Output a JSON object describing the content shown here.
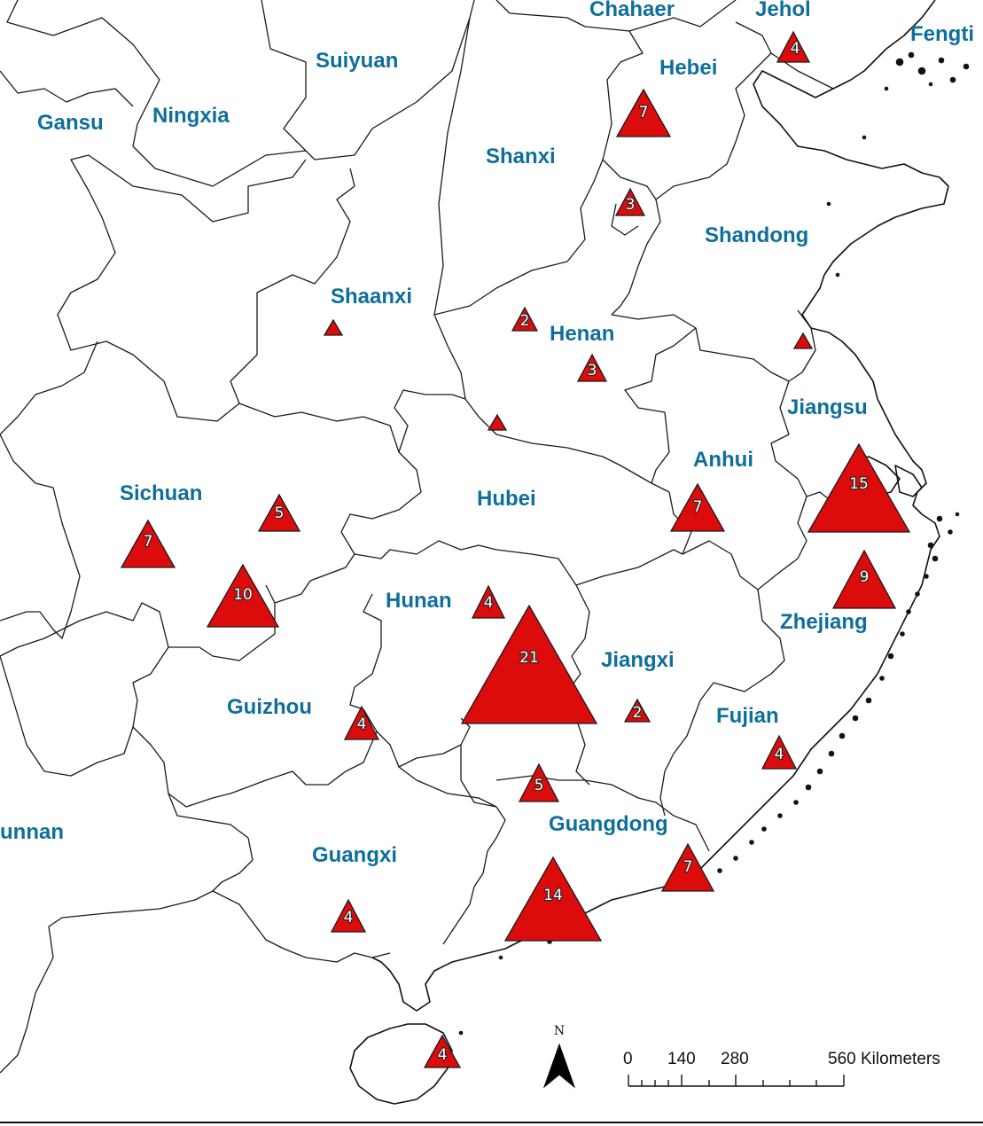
{
  "map": {
    "provinces": [
      {
        "name": "Chahaer"
      },
      {
        "name": "Jehol"
      },
      {
        "name": "Fengti"
      },
      {
        "name": "Suiyuan"
      },
      {
        "name": "Hebei"
      },
      {
        "name": "Gansu"
      },
      {
        "name": "Ningxia"
      },
      {
        "name": "Shanxi"
      },
      {
        "name": "Shandong"
      },
      {
        "name": "Shaanxi"
      },
      {
        "name": "Henan"
      },
      {
        "name": "Jiangsu"
      },
      {
        "name": "Anhui"
      },
      {
        "name": "Sichuan"
      },
      {
        "name": "Hubei"
      },
      {
        "name": "Hunan"
      },
      {
        "name": "Zhejiang"
      },
      {
        "name": "Jiangxi"
      },
      {
        "name": "Guizhou"
      },
      {
        "name": "Fujian"
      },
      {
        "name": "unnan"
      },
      {
        "name": "Guangdong"
      },
      {
        "name": "Guangxi"
      }
    ],
    "markers": [
      {
        "province": "Jehol",
        "count": "4"
      },
      {
        "province": "Hebei",
        "count": "7"
      },
      {
        "province": "Hebei",
        "count": "3"
      },
      {
        "province": "Shaanxi",
        "count": ""
      },
      {
        "province": "Henan",
        "count": "2"
      },
      {
        "province": "Henan",
        "count": "3"
      },
      {
        "province": "Jiangsu",
        "count": ""
      },
      {
        "province": "Hubei",
        "count": ""
      },
      {
        "province": "Sichuan",
        "count": "5"
      },
      {
        "province": "Sichuan",
        "count": "7"
      },
      {
        "province": "Sichuan",
        "count": "10"
      },
      {
        "province": "Anhui",
        "count": "7"
      },
      {
        "province": "Jiangsu",
        "count": "15"
      },
      {
        "province": "Zhejiang",
        "count": "9"
      },
      {
        "province": "Hunan",
        "count": "4"
      },
      {
        "province": "Hunan",
        "count": "21"
      },
      {
        "province": "Jiangxi",
        "count": "2"
      },
      {
        "province": "Guizhou",
        "count": "4"
      },
      {
        "province": "Fujian",
        "count": "4"
      },
      {
        "province": "Guangdong",
        "count": "5"
      },
      {
        "province": "Guangdong",
        "count": "7"
      },
      {
        "province": "Guangdong",
        "count": "14"
      },
      {
        "province": "Guangxi",
        "count": "4"
      },
      {
        "province": "Guangdong",
        "count": "4"
      }
    ],
    "marker_color": "#dd0c0c",
    "label_color": "#0e6f9c"
  },
  "scale_bar": {
    "ticks": [
      "0",
      "140",
      "280",
      "560 Kilometers"
    ]
  },
  "north_arrow": {
    "letter": "N"
  }
}
